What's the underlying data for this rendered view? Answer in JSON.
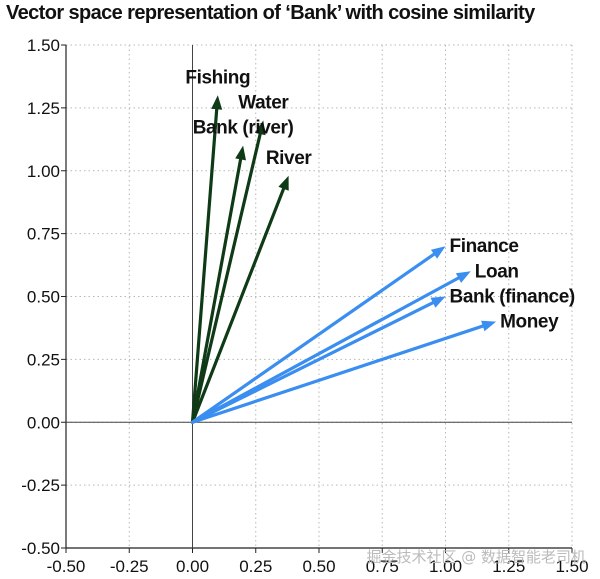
{
  "chart_data": {
    "type": "vector",
    "title": "Vector space representation of ‘Bank’ with cosine similarity",
    "xlim": [
      -0.5,
      1.5
    ],
    "ylim": [
      -0.5,
      1.5
    ],
    "xticks": [
      -0.5,
      -0.25,
      0.0,
      0.25,
      0.5,
      0.75,
      1.0,
      1.25,
      1.5
    ],
    "yticks": [
      -0.5,
      -0.25,
      0.0,
      0.25,
      0.5,
      0.75,
      1.0,
      1.25,
      1.5
    ],
    "grid": true,
    "series": [
      {
        "color": "#0f3a16",
        "vectors": [
          {
            "label": "Fishing",
            "x": 0.1,
            "y": 1.3
          },
          {
            "label": "Water",
            "x": 0.28,
            "y": 1.2
          },
          {
            "label": "Bank (river)",
            "x": 0.2,
            "y": 1.1
          },
          {
            "label": "River",
            "x": 0.38,
            "y": 0.98
          }
        ]
      },
      {
        "color": "#3a8ef0",
        "vectors": [
          {
            "label": "Finance",
            "x": 1.0,
            "y": 0.7
          },
          {
            "label": "Loan",
            "x": 1.1,
            "y": 0.6
          },
          {
            "label": "Bank (finance)",
            "x": 1.0,
            "y": 0.5
          },
          {
            "label": "Money",
            "x": 1.2,
            "y": 0.4
          }
        ]
      }
    ]
  },
  "watermark": "掘金技术社区 @ 数据智能老司机"
}
